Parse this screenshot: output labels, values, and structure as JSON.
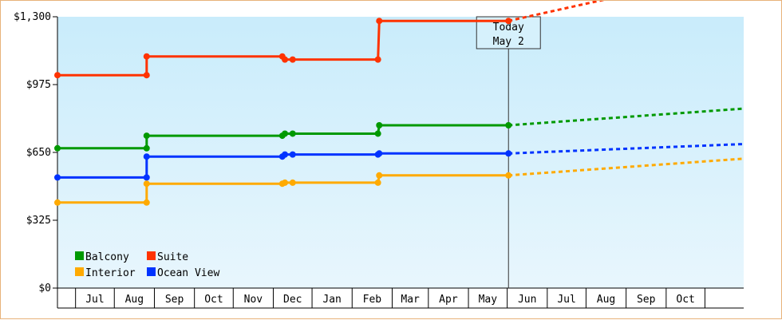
{
  "chart_data": {
    "type": "line",
    "subtype": "step-with-projection",
    "y_ticks": [
      {
        "value": 0,
        "label": "$0"
      },
      {
        "value": 325,
        "label": "$325"
      },
      {
        "value": 650,
        "label": "$650"
      },
      {
        "value": 975,
        "label": "$975"
      },
      {
        "value": 1300,
        "label": "$1,300"
      }
    ],
    "ylim": [
      0,
      1300
    ],
    "x_range": [
      "2024-05-18",
      "2025-10-31"
    ],
    "month_labels": [
      "Jul",
      "Aug",
      "Sep",
      "Oct",
      "Nov",
      "Dec",
      "Jan",
      "Feb",
      "Mar",
      "Apr",
      "May",
      "Jun",
      "Jul",
      "Aug",
      "Sep",
      "Oct"
    ],
    "month_starts": [
      "2024-06-01",
      "2024-07-01",
      "2024-08-01",
      "2024-09-01",
      "2024-10-01",
      "2024-11-01",
      "2024-12-01",
      "2025-01-01",
      "2025-02-01",
      "2025-03-01",
      "2025-04-01",
      "2025-05-01",
      "2025-06-01",
      "2025-07-01",
      "2025-08-01",
      "2025-09-01",
      "2025-10-01",
      "2025-11-01"
    ],
    "today": {
      "date": "2025-05-02",
      "line1": "Today",
      "line2": "May 2"
    },
    "grid": false,
    "legend": {
      "position": "bottom-left",
      "order": [
        "Balcony",
        "Suite",
        "Interior",
        "Ocean View"
      ]
    },
    "series": [
      {
        "name": "Suite",
        "color": "#ff3300",
        "history": [
          {
            "x": "2024-05-18",
            "y": 1020
          },
          {
            "x": "2024-07-26",
            "y": 1020
          },
          {
            "x": "2024-07-26",
            "y": 1110
          },
          {
            "x": "2024-11-08",
            "y": 1110
          },
          {
            "x": "2024-11-10",
            "y": 1095
          },
          {
            "x": "2024-11-16",
            "y": 1095
          },
          {
            "x": "2025-01-21",
            "y": 1095
          },
          {
            "x": "2025-01-22",
            "y": 1280
          },
          {
            "x": "2025-05-02",
            "y": 1280
          }
        ],
        "markers": [
          {
            "x": "2024-05-18",
            "y": 1020
          },
          {
            "x": "2024-07-26",
            "y": 1020
          },
          {
            "x": "2024-07-26",
            "y": 1110
          },
          {
            "x": "2024-11-08",
            "y": 1110
          },
          {
            "x": "2024-11-10",
            "y": 1095
          },
          {
            "x": "2024-11-16",
            "y": 1095
          },
          {
            "x": "2025-01-21",
            "y": 1095
          },
          {
            "x": "2025-01-22",
            "y": 1280
          },
          {
            "x": "2025-05-02",
            "y": 1280
          }
        ],
        "projection": [
          {
            "x": "2025-05-02",
            "y": 1280
          },
          {
            "x": "2025-10-31",
            "y": 1530
          }
        ]
      },
      {
        "name": "Balcony",
        "color": "#009900",
        "history": [
          {
            "x": "2024-05-18",
            "y": 670
          },
          {
            "x": "2024-07-26",
            "y": 670
          },
          {
            "x": "2024-07-26",
            "y": 730
          },
          {
            "x": "2024-11-08",
            "y": 730
          },
          {
            "x": "2024-11-10",
            "y": 740
          },
          {
            "x": "2024-11-16",
            "y": 740
          },
          {
            "x": "2025-01-21",
            "y": 740
          },
          {
            "x": "2025-01-22",
            "y": 780
          },
          {
            "x": "2025-05-02",
            "y": 780
          }
        ],
        "markers": [
          {
            "x": "2024-05-18",
            "y": 670
          },
          {
            "x": "2024-07-26",
            "y": 670
          },
          {
            "x": "2024-07-26",
            "y": 730
          },
          {
            "x": "2024-11-08",
            "y": 730
          },
          {
            "x": "2024-11-10",
            "y": 740
          },
          {
            "x": "2024-11-16",
            "y": 740
          },
          {
            "x": "2025-01-21",
            "y": 740
          },
          {
            "x": "2025-01-22",
            "y": 780
          },
          {
            "x": "2025-05-02",
            "y": 780
          }
        ],
        "projection": [
          {
            "x": "2025-05-02",
            "y": 780
          },
          {
            "x": "2025-10-31",
            "y": 860
          }
        ]
      },
      {
        "name": "Ocean View",
        "color": "#0033ff",
        "history": [
          {
            "x": "2024-05-18",
            "y": 530
          },
          {
            "x": "2024-07-26",
            "y": 530
          },
          {
            "x": "2024-07-26",
            "y": 630
          },
          {
            "x": "2024-11-08",
            "y": 630
          },
          {
            "x": "2024-11-10",
            "y": 640
          },
          {
            "x": "2024-11-16",
            "y": 640
          },
          {
            "x": "2025-01-21",
            "y": 640
          },
          {
            "x": "2025-01-22",
            "y": 645
          },
          {
            "x": "2025-05-02",
            "y": 645
          }
        ],
        "markers": [
          {
            "x": "2024-05-18",
            "y": 530
          },
          {
            "x": "2024-07-26",
            "y": 530
          },
          {
            "x": "2024-07-26",
            "y": 630
          },
          {
            "x": "2024-11-08",
            "y": 630
          },
          {
            "x": "2024-11-10",
            "y": 640
          },
          {
            "x": "2024-11-16",
            "y": 640
          },
          {
            "x": "2025-01-21",
            "y": 640
          },
          {
            "x": "2025-01-22",
            "y": 645
          },
          {
            "x": "2025-05-02",
            "y": 645
          }
        ],
        "projection": [
          {
            "x": "2025-05-02",
            "y": 645
          },
          {
            "x": "2025-10-31",
            "y": 690
          }
        ]
      },
      {
        "name": "Interior",
        "color": "#ffaa00",
        "history": [
          {
            "x": "2024-05-18",
            "y": 410
          },
          {
            "x": "2024-07-26",
            "y": 410
          },
          {
            "x": "2024-07-26",
            "y": 500
          },
          {
            "x": "2024-11-08",
            "y": 500
          },
          {
            "x": "2024-11-10",
            "y": 505
          },
          {
            "x": "2024-11-16",
            "y": 505
          },
          {
            "x": "2025-01-21",
            "y": 505
          },
          {
            "x": "2025-01-22",
            "y": 540
          },
          {
            "x": "2025-05-02",
            "y": 540
          }
        ],
        "markers": [
          {
            "x": "2024-05-18",
            "y": 410
          },
          {
            "x": "2024-07-26",
            "y": 410
          },
          {
            "x": "2024-07-26",
            "y": 500
          },
          {
            "x": "2024-11-08",
            "y": 500
          },
          {
            "x": "2024-11-10",
            "y": 505
          },
          {
            "x": "2024-11-16",
            "y": 505
          },
          {
            "x": "2025-01-21",
            "y": 505
          },
          {
            "x": "2025-01-22",
            "y": 540
          },
          {
            "x": "2025-05-02",
            "y": 540
          }
        ],
        "projection": [
          {
            "x": "2025-05-02",
            "y": 540
          },
          {
            "x": "2025-10-31",
            "y": 620
          }
        ]
      }
    ]
  }
}
